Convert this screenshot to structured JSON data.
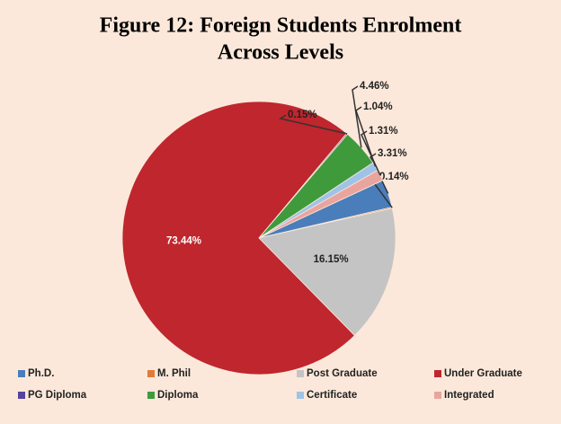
{
  "chart_data": {
    "type": "pie",
    "title": "Figure 12: Foreign Students Enrolment",
    "subtitle": "Across Levels",
    "categories": [
      "Ph.D.",
      "M. Phil",
      "Post Graduate",
      "Under Graduate",
      "PG Diploma",
      "Diploma",
      "Certificate",
      "Integrated"
    ],
    "values": [
      3.31,
      0.14,
      16.15,
      73.44,
      0.15,
      4.46,
      1.04,
      1.31
    ],
    "value_labels": [
      "3.31%",
      "0.14%",
      "16.15%",
      "73.44%",
      "0.15%",
      "4.46%",
      "1.04%",
      "1.31%"
    ],
    "colors": [
      "#4a7ebb",
      "#e07b39",
      "#c4c4c4",
      "#c0262d",
      "#55449a",
      "#3f9a3c",
      "#9fc3e6",
      "#e9a59d"
    ]
  }
}
